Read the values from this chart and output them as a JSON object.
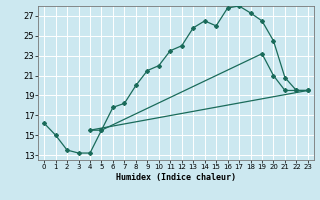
{
  "xlabel": "Humidex (Indice chaleur)",
  "bg_color": "#cce8f0",
  "grid_color": "#b0d4e0",
  "line_color": "#1a6b5a",
  "xlim": [
    -0.5,
    23.5
  ],
  "ylim": [
    12.5,
    28.0
  ],
  "xticks": [
    0,
    1,
    2,
    3,
    4,
    5,
    6,
    7,
    8,
    9,
    10,
    11,
    12,
    13,
    14,
    15,
    16,
    17,
    18,
    19,
    20,
    21,
    22,
    23
  ],
  "yticks": [
    13,
    15,
    17,
    19,
    21,
    23,
    25,
    27
  ],
  "line1_x": [
    0,
    1,
    2,
    3,
    4,
    5,
    6,
    7,
    8,
    9,
    10,
    11,
    12,
    13,
    14,
    15,
    16,
    17,
    18,
    19,
    20,
    21,
    22,
    23
  ],
  "line1_y": [
    16.2,
    15.0,
    13.5,
    13.2,
    13.2,
    15.5,
    17.8,
    18.2,
    20.0,
    21.5,
    22.0,
    23.5,
    24.0,
    25.8,
    26.5,
    26.0,
    27.8,
    28.0,
    27.3,
    26.5,
    24.5,
    20.8,
    19.5,
    19.5
  ],
  "line2_x": [
    4,
    5,
    19,
    20,
    21,
    22,
    23
  ],
  "line2_y": [
    15.5,
    15.5,
    23.2,
    21.0,
    19.5,
    19.5,
    19.5
  ],
  "line3_x": [
    4,
    23
  ],
  "line3_y": [
    15.5,
    19.5
  ]
}
